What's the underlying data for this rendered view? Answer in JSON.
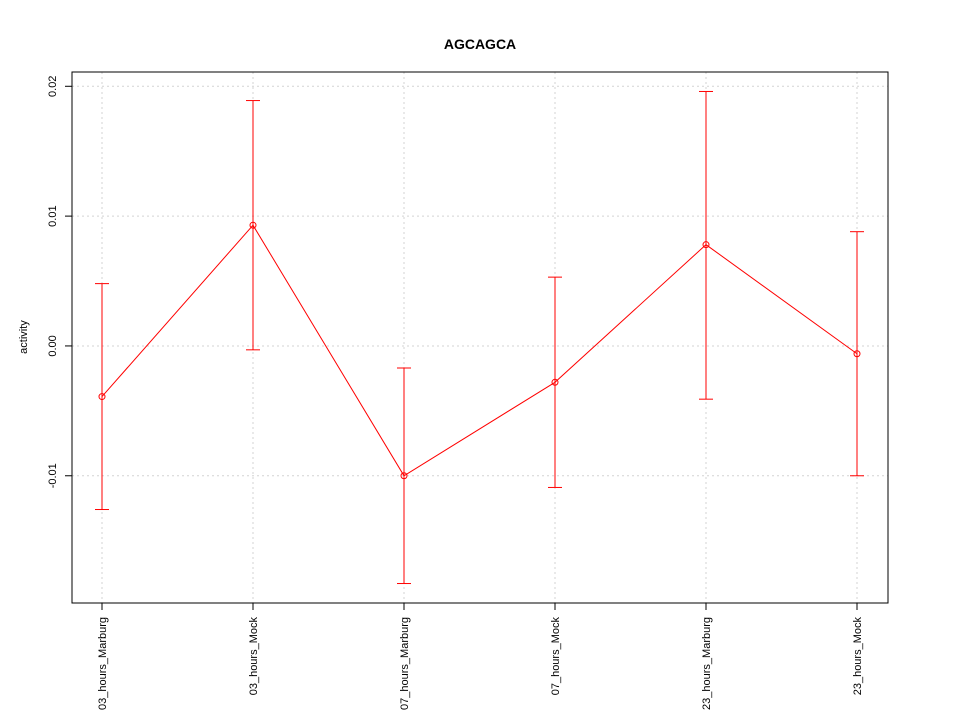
{
  "chart_data": {
    "type": "line",
    "title": "AGCAGCA",
    "xlabel": "",
    "ylabel": "activity",
    "categories": [
      "03_hours_Marburg",
      "03_hours_Mock",
      "07_hours_Marburg",
      "07_hours_Mock",
      "23_hours_Marburg",
      "23_hours_Mock"
    ],
    "series": [
      {
        "values": [
          -0.0039,
          0.0093,
          -0.01,
          -0.0028,
          0.0078,
          -0.0006
        ],
        "upper": [
          0.0048,
          0.0189,
          -0.0017,
          0.0053,
          0.0196,
          0.0088
        ],
        "lower": [
          -0.0126,
          -0.0003,
          -0.0183,
          -0.0109,
          -0.0041,
          -0.01
        ],
        "color": "#ff0000"
      }
    ],
    "yticks": [
      -0.01,
      0.0,
      0.01,
      0.02
    ],
    "ytick_labels": [
      "-0.01",
      "0.00",
      "0.01",
      "0.02"
    ],
    "ylim": [
      -0.0198,
      0.0211
    ],
    "grid": true,
    "grid_color": "#d3d3d3",
    "frame_color": "#000000"
  }
}
